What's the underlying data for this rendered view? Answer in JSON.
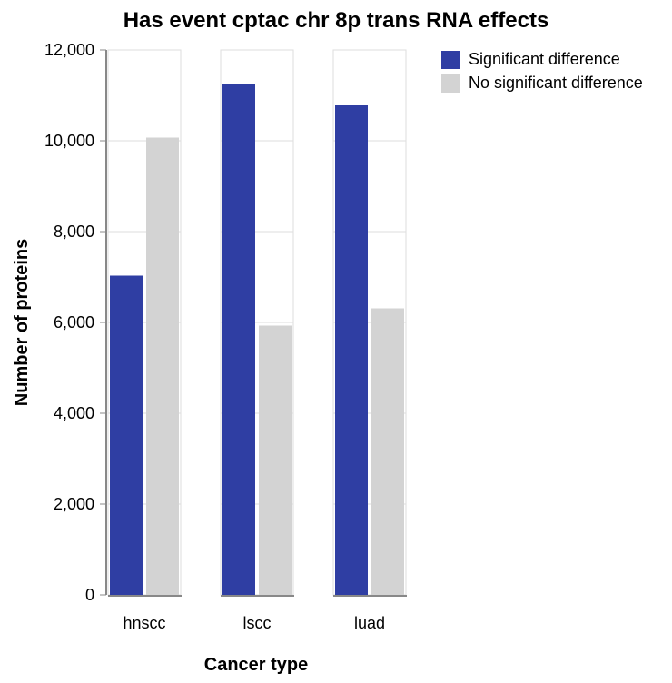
{
  "chart_data": {
    "type": "bar",
    "title": "Has event cptac chr 8p trans RNA effects",
    "xlabel": "Cancer type",
    "ylabel": "Number of proteins",
    "categories": [
      "hnscc",
      "lscc",
      "luad"
    ],
    "series": [
      {
        "name": "Significant difference",
        "color": "#2f3ea3",
        "values": [
          7030,
          11240,
          10780
        ]
      },
      {
        "name": "No significant difference",
        "color": "#d3d3d3",
        "values": [
          10070,
          5930,
          6310
        ]
      }
    ],
    "ylim": [
      0,
      12000
    ],
    "yticks": [
      0,
      2000,
      4000,
      6000,
      8000,
      10000,
      12000
    ],
    "ytick_labels": [
      "0",
      "2,000",
      "4,000",
      "6,000",
      "8,000",
      "10,000",
      "12,000"
    ],
    "grid": true,
    "legend_position": "top-right"
  }
}
